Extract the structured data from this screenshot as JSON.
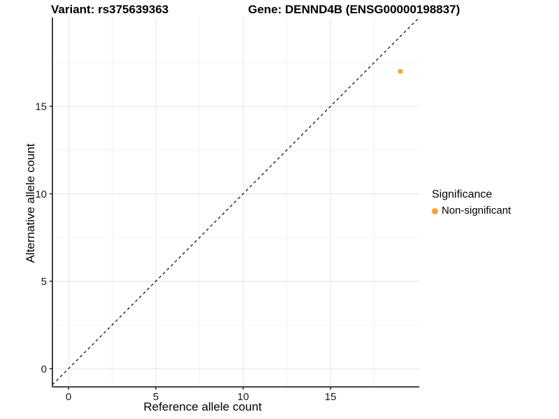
{
  "header": {
    "title_left": "Variant: rs375639363",
    "title_right": "Gene: DENND4B (ENSG00000198837)"
  },
  "axes": {
    "x_label": "Reference allele count",
    "y_label": "Alternative allele count"
  },
  "legend": {
    "title": "Significance",
    "position": "right",
    "items": [
      {
        "label": "Non-significant",
        "color": "#F9A232",
        "marker": "circle-icon"
      }
    ]
  },
  "chart_data": {
    "type": "scatter",
    "title": "Variant: rs375639363 | Gene: DENND4B (ENSG00000198837)",
    "xlabel": "Reference allele count",
    "ylabel": "Alternative allele count",
    "xlim": [
      -0.92,
      20.08
    ],
    "ylim": [
      -1.04,
      20.08
    ],
    "x_ticks": [
      0,
      5,
      10,
      15
    ],
    "y_ticks": [
      0,
      5,
      10,
      15
    ],
    "x_minor_ticks": [
      2.5,
      7.5,
      12.5,
      17.5
    ],
    "y_minor_ticks": [
      2.5,
      7.5,
      12.5,
      17.5
    ],
    "grid": true,
    "legend_position": "right",
    "series": [
      {
        "name": "Non-significant",
        "color": "#F9A232",
        "marker": "circle",
        "points": [
          {
            "x": 19,
            "y": 17
          }
        ]
      }
    ],
    "reference_line": {
      "equation": "y = x",
      "style": "dashed",
      "color": "#000000"
    }
  },
  "colors": {
    "background": "#FFFFFF",
    "grid_major": "#E4E4E4",
    "grid_minor": "#F2F2F2",
    "axis_line": "#2E2E2E",
    "tick_text": "#1A1A1A",
    "title_text": "#000000"
  }
}
